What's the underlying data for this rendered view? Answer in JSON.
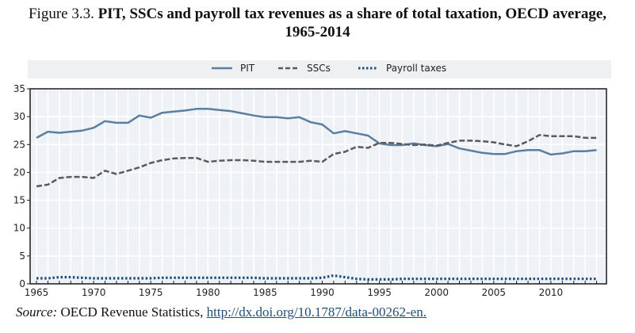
{
  "figure": {
    "label": "Figure 3.3.",
    "title": "PIT, SSCs and payroll tax revenues as a share of total taxation, OECD average,",
    "title_line2": "1965-2014"
  },
  "source": {
    "label": "Source:",
    "text": "OECD Revenue Statistics,",
    "link": "http://dx.doi.org/10.1787/data-00262-en."
  },
  "chart_data": {
    "type": "line",
    "title": "PIT, SSCs and payroll tax revenues as a share of total taxation, OECD average, 1965-2014",
    "xlabel": "",
    "ylabel": "",
    "xlim": [
      1965,
      2014
    ],
    "ylim": [
      0,
      35
    ],
    "yticks": [
      "0",
      "5",
      "10",
      "15",
      "20",
      "25",
      "30",
      "35"
    ],
    "xticks": [
      "1965",
      "1970",
      "1975",
      "1980",
      "1985",
      "1990",
      "1995",
      "2000",
      "2005",
      "2010"
    ],
    "grid": true,
    "legend_position": "top",
    "x": [
      1965,
      1966,
      1967,
      1968,
      1969,
      1970,
      1971,
      1972,
      1973,
      1974,
      1975,
      1976,
      1977,
      1978,
      1979,
      1980,
      1981,
      1982,
      1983,
      1984,
      1985,
      1986,
      1987,
      1988,
      1989,
      1990,
      1991,
      1992,
      1993,
      1994,
      1995,
      1996,
      1997,
      1998,
      1999,
      2000,
      2001,
      2002,
      2003,
      2004,
      2005,
      2006,
      2007,
      2008,
      2009,
      2010,
      2011,
      2012,
      2013,
      2014
    ],
    "series": [
      {
        "name": "PIT",
        "style": "solid",
        "color": "#5b7fa0",
        "values": [
          26.2,
          27.3,
          27.1,
          27.3,
          27.5,
          28.0,
          29.2,
          28.9,
          28.9,
          30.2,
          29.8,
          30.7,
          30.9,
          31.1,
          31.4,
          31.4,
          31.2,
          31.0,
          30.6,
          30.2,
          29.9,
          29.9,
          29.7,
          29.9,
          29.0,
          28.6,
          27.0,
          27.4,
          27.0,
          26.6,
          25.2,
          24.9,
          24.9,
          25.2,
          24.9,
          24.7,
          25.1,
          24.3,
          23.9,
          23.5,
          23.3,
          23.3,
          23.8,
          24.0,
          24.0,
          23.2,
          23.4,
          23.8,
          23.8,
          24.0
        ]
      },
      {
        "name": "SSCs",
        "style": "dashed",
        "color": "#5a5a5a",
        "values": [
          17.5,
          17.8,
          19.0,
          19.2,
          19.2,
          19.0,
          20.3,
          19.7,
          20.3,
          20.9,
          21.7,
          22.2,
          22.5,
          22.6,
          22.6,
          21.9,
          22.1,
          22.2,
          22.2,
          22.1,
          21.9,
          21.9,
          21.9,
          21.9,
          22.1,
          21.9,
          23.3,
          23.7,
          24.6,
          24.4,
          25.3,
          25.3,
          25.1,
          24.9,
          25.0,
          24.8,
          25.3,
          25.7,
          25.7,
          25.6,
          25.4,
          25.0,
          24.7,
          25.6,
          26.7,
          26.5,
          26.5,
          26.5,
          26.2,
          26.2
        ]
      },
      {
        "name": "Payroll taxes",
        "style": "dotted",
        "color": "#1f4e79",
        "values": [
          1.0,
          1.0,
          1.2,
          1.2,
          1.1,
          1.0,
          1.0,
          1.0,
          1.0,
          1.0,
          1.0,
          1.1,
          1.1,
          1.1,
          1.1,
          1.1,
          1.1,
          1.1,
          1.1,
          1.1,
          1.0,
          1.0,
          1.0,
          1.0,
          1.0,
          1.1,
          1.5,
          1.2,
          0.9,
          0.8,
          0.8,
          0.8,
          0.9,
          0.9,
          0.9,
          0.9,
          0.9,
          0.9,
          0.9,
          0.9,
          0.9,
          0.9,
          0.9,
          0.9,
          0.9,
          0.9,
          0.9,
          0.9,
          0.9,
          0.9
        ]
      }
    ]
  }
}
